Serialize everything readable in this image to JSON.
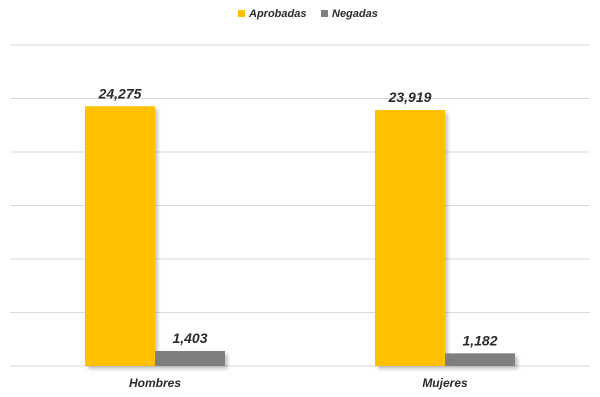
{
  "chart_data": {
    "type": "bar",
    "categories": [
      "Hombres",
      "Mujeres"
    ],
    "series": [
      {
        "name": "Aprobadas",
        "values": [
          24275,
          23919
        ],
        "labels": [
          "24,275",
          "23,919"
        ],
        "color": "#FFC000"
      },
      {
        "name": "Negadas",
        "values": [
          1403,
          1182
        ],
        "labels": [
          "1,403",
          "1,182"
        ],
        "color": "#7F7F7F"
      }
    ],
    "legend_position": "top",
    "grid": true,
    "ylim": [
      0,
      30000
    ]
  }
}
